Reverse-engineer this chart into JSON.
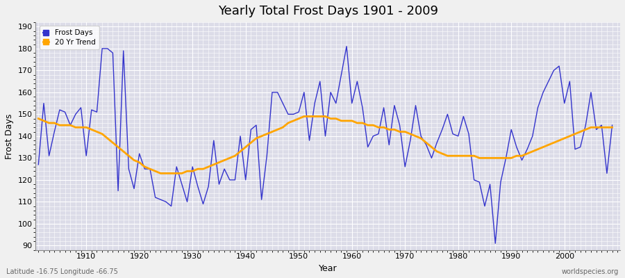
{
  "title": "Yearly Total Frost Days 1901 - 2009",
  "xlabel": "Year",
  "ylabel": "Frost Days",
  "subtitle": "Latitude -16.75 Longitude -66.75",
  "watermark": "worldspecies.org",
  "line_color": "#3333cc",
  "trend_color": "#FFA500",
  "bg_color": "#dcdce8",
  "fig_color": "#f0f0f0",
  "grid_color": "#ffffff",
  "ylim": [
    88,
    192
  ],
  "xlim": [
    1900.5,
    2010.5
  ],
  "yticks": [
    90,
    100,
    110,
    120,
    130,
    140,
    150,
    160,
    170,
    180,
    190
  ],
  "xticks": [
    1910,
    1920,
    1930,
    1940,
    1950,
    1960,
    1970,
    1980,
    1990,
    2000
  ],
  "frost_days_years": [
    1901,
    1902,
    1903,
    1904,
    1905,
    1906,
    1907,
    1908,
    1909,
    1910,
    1911,
    1912,
    1913,
    1914,
    1915,
    1916,
    1917,
    1918,
    1919,
    1920,
    1921,
    1922,
    1923,
    1924,
    1925,
    1926,
    1927,
    1928,
    1929,
    1930,
    1931,
    1932,
    1933,
    1934,
    1935,
    1936,
    1937,
    1938,
    1939,
    1940,
    1941,
    1942,
    1943,
    1944,
    1945,
    1946,
    1947,
    1948,
    1949,
    1950,
    1951,
    1952,
    1953,
    1954,
    1955,
    1956,
    1957,
    1958,
    1959,
    1960,
    1961,
    1962,
    1963,
    1964,
    1965,
    1966,
    1967,
    1968,
    1969,
    1970,
    1971,
    1972,
    1973,
    1974,
    1975,
    1976,
    1977,
    1978,
    1979,
    1980,
    1981,
    1982,
    1983,
    1984,
    1985,
    1986,
    1987,
    1988,
    1989,
    1990,
    1991,
    1992,
    1993,
    1994,
    1995,
    1996,
    1997,
    1998,
    1999,
    2000,
    2001,
    2002,
    2003,
    2004,
    2005,
    2006,
    2007,
    2008,
    2009
  ],
  "frost_days_vals": [
    127,
    155,
    131,
    142,
    152,
    151,
    145,
    150,
    153,
    131,
    152,
    151,
    180,
    180,
    178,
    115,
    179,
    125,
    116,
    132,
    125,
    125,
    112,
    111,
    110,
    108,
    126,
    118,
    110,
    126,
    117,
    109,
    117,
    138,
    118,
    125,
    120,
    120,
    140,
    120,
    143,
    145,
    111,
    131,
    160,
    160,
    155,
    150,
    150,
    151,
    160,
    138,
    155,
    165,
    140,
    160,
    155,
    168,
    181,
    155,
    165,
    153,
    135,
    140,
    141,
    153,
    136,
    154,
    145,
    126,
    138,
    154,
    140,
    136,
    130,
    137,
    143,
    150,
    141,
    140,
    149,
    141,
    120,
    119,
    108,
    118,
    91,
    119,
    130,
    143,
    135,
    129,
    134,
    140,
    153,
    160,
    165,
    170,
    172,
    155,
    165,
    134,
    135,
    145,
    160,
    143,
    145,
    123,
    145
  ],
  "trend_years": [
    1901,
    1902,
    1903,
    1904,
    1905,
    1906,
    1907,
    1908,
    1909,
    1910,
    1911,
    1912,
    1913,
    1914,
    1915,
    1916,
    1917,
    1918,
    1919,
    1920,
    1921,
    1922,
    1923,
    1924,
    1925,
    1926,
    1927,
    1928,
    1929,
    1930,
    1931,
    1932,
    1933,
    1934,
    1935,
    1936,
    1937,
    1938,
    1939,
    1940,
    1941,
    1942,
    1943,
    1944,
    1945,
    1946,
    1947,
    1948,
    1949,
    1950,
    1951,
    1952,
    1953,
    1954,
    1955,
    1956,
    1957,
    1958,
    1959,
    1960,
    1961,
    1962,
    1963,
    1964,
    1965,
    1966,
    1967,
    1968,
    1969,
    1970,
    1971,
    1972,
    1973,
    1974,
    1975,
    1976,
    1977,
    1978,
    1979,
    1980,
    1981,
    1982,
    1983,
    1984,
    1985,
    1986,
    1987,
    1988,
    1989,
    1990,
    1991,
    1992,
    1993,
    1994,
    1995,
    1996,
    1997,
    1998,
    1999,
    2000,
    2001,
    2002,
    2003,
    2004,
    2005,
    2006,
    2007,
    2008,
    2009
  ],
  "trend_vals": [
    148,
    147,
    146,
    146,
    145,
    145,
    145,
    144,
    144,
    144,
    143,
    142,
    141,
    139,
    137,
    135,
    133,
    131,
    129,
    128,
    126,
    125,
    124,
    123,
    123,
    123,
    123,
    123,
    124,
    124,
    125,
    125,
    126,
    127,
    128,
    129,
    130,
    131,
    133,
    135,
    137,
    139,
    140,
    141,
    142,
    143,
    144,
    146,
    147,
    148,
    149,
    149,
    149,
    149,
    149,
    148,
    148,
    147,
    147,
    147,
    146,
    146,
    145,
    145,
    144,
    144,
    143,
    143,
    142,
    142,
    141,
    140,
    139,
    137,
    135,
    133,
    132,
    131,
    131,
    131,
    131,
    131,
    131,
    130,
    130,
    130,
    130,
    130,
    130,
    130,
    131,
    131,
    132,
    133,
    134,
    135,
    136,
    137,
    138,
    139,
    140,
    141,
    142,
    143,
    144,
    144,
    144,
    144,
    144
  ]
}
